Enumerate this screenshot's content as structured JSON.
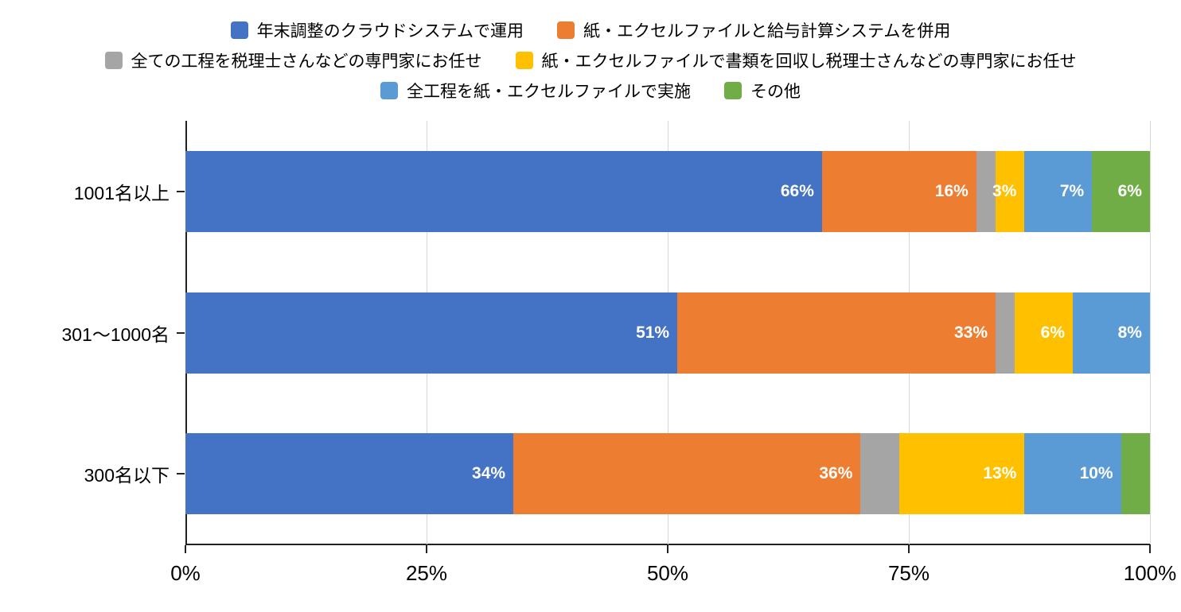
{
  "chart_data": {
    "type": "bar",
    "orientation": "horizontal-stacked",
    "title": "",
    "xlabel": "",
    "ylabel": "",
    "xlim": [
      0,
      100
    ],
    "grid": true,
    "legend_position": "top",
    "categories": [
      "1001名以上",
      "301〜1000名",
      "300名以下"
    ],
    "series": [
      {
        "name": "年末調整のクラウドシステムで運用",
        "color": "#4472C4",
        "values": [
          66,
          51,
          34
        ]
      },
      {
        "name": "紙・エクセルファイルと給与計算システムを併用",
        "color": "#ED7D31",
        "values": [
          16,
          33,
          36
        ]
      },
      {
        "name": "全ての工程を税理士さんなどの専門家にお任せ",
        "color": "#A5A5A5",
        "values": [
          2,
          2,
          4
        ]
      },
      {
        "name": "紙・エクセルファイルで書類を回収し税理士さんなどの専門家にお任せ",
        "color": "#FFC000",
        "values": [
          3,
          6,
          13
        ]
      },
      {
        "name": "全工程を紙・エクセルファイルで実施",
        "color": "#5B9BD5",
        "values": [
          7,
          8,
          10
        ]
      },
      {
        "name": "その他",
        "color": "#70AD47",
        "values": [
          6,
          0,
          3
        ]
      }
    ],
    "value_labels": [
      [
        "66%",
        "16%",
        "",
        "3%",
        "7%",
        "6%"
      ],
      [
        "51%",
        "33%",
        "",
        "6%",
        "8%",
        ""
      ],
      [
        "34%",
        "36%",
        "",
        "13%",
        "10%",
        ""
      ]
    ],
    "x_ticks": [
      "0%",
      "25%",
      "50%",
      "75%",
      "100%"
    ],
    "x_tick_values": [
      0,
      25,
      50,
      75,
      100
    ]
  }
}
